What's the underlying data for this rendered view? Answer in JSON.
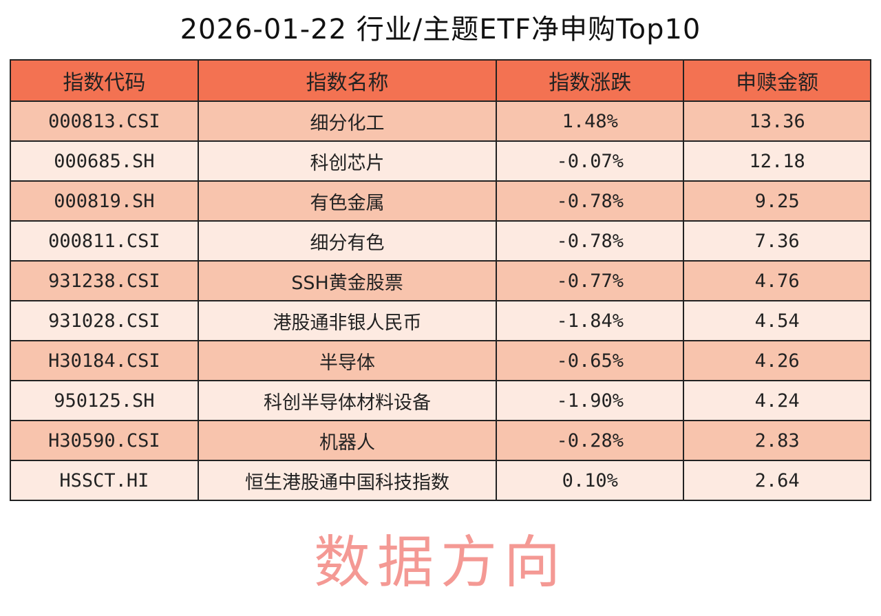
{
  "title": "2026-01-22 行业/主题ETF净申购Top10",
  "watermark": "数据方向",
  "colors": {
    "header": "#f37252",
    "row_odd": "#f8c4ad",
    "row_even": "#fdeae1",
    "watermark": "#eb463c"
  },
  "chart_data": {
    "type": "table",
    "title": "2026-01-22 行业/主题ETF净申购Top10",
    "columns": [
      "指数代码",
      "指数名称",
      "指数涨跌",
      "申赎金额"
    ],
    "rows": [
      [
        "000813.CSI",
        "细分化工",
        "1.48%",
        "13.36"
      ],
      [
        "000685.SH",
        "科创芯片",
        "-0.07%",
        "12.18"
      ],
      [
        "000819.SH",
        "有色金属",
        "-0.78%",
        "9.25"
      ],
      [
        "000811.CSI",
        "细分有色",
        "-0.78%",
        "7.36"
      ],
      [
        "931238.CSI",
        "SSH黄金股票",
        "-0.77%",
        "4.76"
      ],
      [
        "931028.CSI",
        "港股通非银人民币",
        "-1.84%",
        "4.54"
      ],
      [
        "H30184.CSI",
        "半导体",
        "-0.65%",
        "4.26"
      ],
      [
        "950125.SH",
        "科创半导体材料设备",
        "-1.90%",
        "4.24"
      ],
      [
        "H30590.CSI",
        "机器人",
        "-0.28%",
        "2.83"
      ],
      [
        "HSSCT.HI",
        "恒生港股通中国科技指数",
        "0.10%",
        "2.64"
      ]
    ]
  }
}
